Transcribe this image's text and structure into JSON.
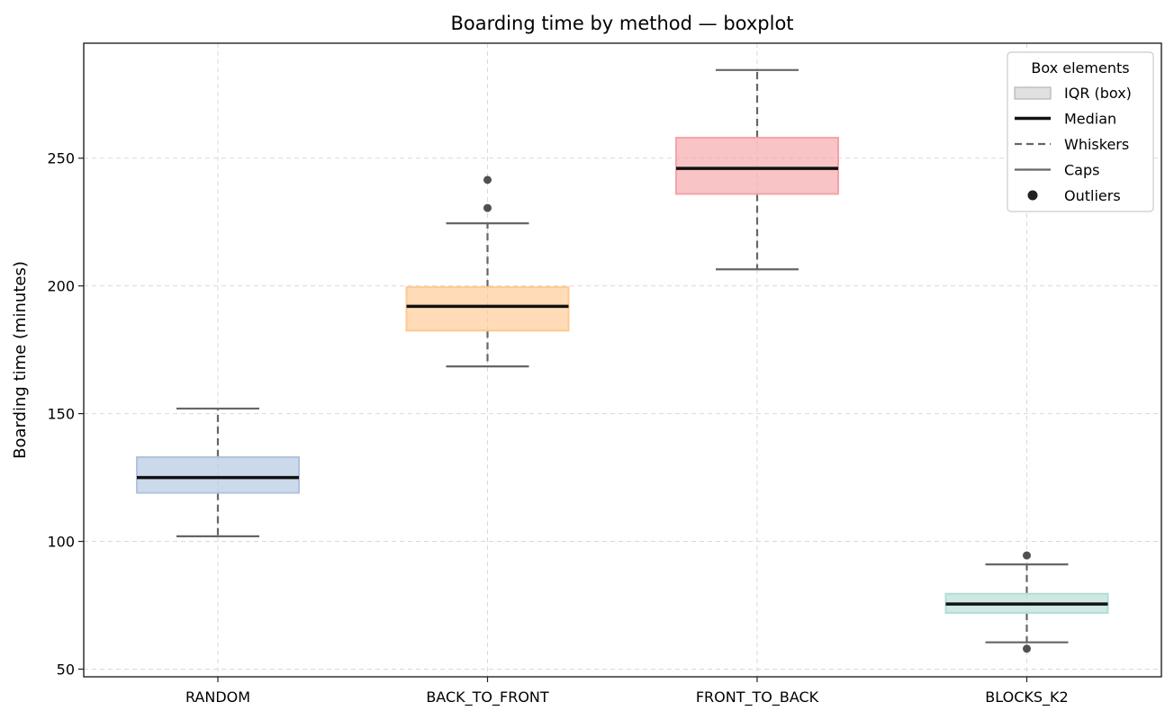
{
  "chart_data": {
    "type": "boxplot",
    "title": "Boarding time by method — boxplot",
    "ylabel": "Boarding time (minutes)",
    "xlabel": "",
    "ylim": [
      47,
      295
    ],
    "yticks": [
      50,
      100,
      150,
      200,
      250
    ],
    "grid": true,
    "legend_position": "top-right",
    "legend": {
      "title": "Box elements",
      "entries": [
        {
          "key": "iqr",
          "label": "IQR (box)"
        },
        {
          "key": "median",
          "label": "Median"
        },
        {
          "key": "whiskers",
          "label": "Whiskers"
        },
        {
          "key": "caps",
          "label": "Caps"
        },
        {
          "key": "outliers",
          "label": "Outliers"
        }
      ]
    },
    "categories": [
      "RANDOM",
      "BACK_TO_FRONT",
      "FRONT_TO_BACK",
      "BLOCKS_K2"
    ],
    "boxes": [
      {
        "category": "RANDOM",
        "whisker_low": 102,
        "q1": 119,
        "median": 125,
        "q3": 133,
        "whisker_high": 152,
        "outliers": [],
        "color": "#b0c4de"
      },
      {
        "category": "BACK_TO_FRONT",
        "whisker_low": 168.5,
        "q1": 182.5,
        "median": 192,
        "q3": 199.5,
        "whisker_high": 224.5,
        "outliers": [
          230.5,
          241.5
        ],
        "color": "#ffc891"
      },
      {
        "category": "FRONT_TO_BACK",
        "whisker_low": 206.5,
        "q1": 236,
        "median": 246,
        "q3": 258,
        "whisker_high": 284.5,
        "outliers": [],
        "color": "#f4a4a8"
      },
      {
        "category": "BLOCKS_K2",
        "whisker_low": 60.5,
        "q1": 72,
        "median": 75.5,
        "q3": 79.5,
        "whisker_high": 91,
        "outliers": [
          58,
          94.5
        ],
        "color": "#b3ddd6"
      }
    ]
  }
}
